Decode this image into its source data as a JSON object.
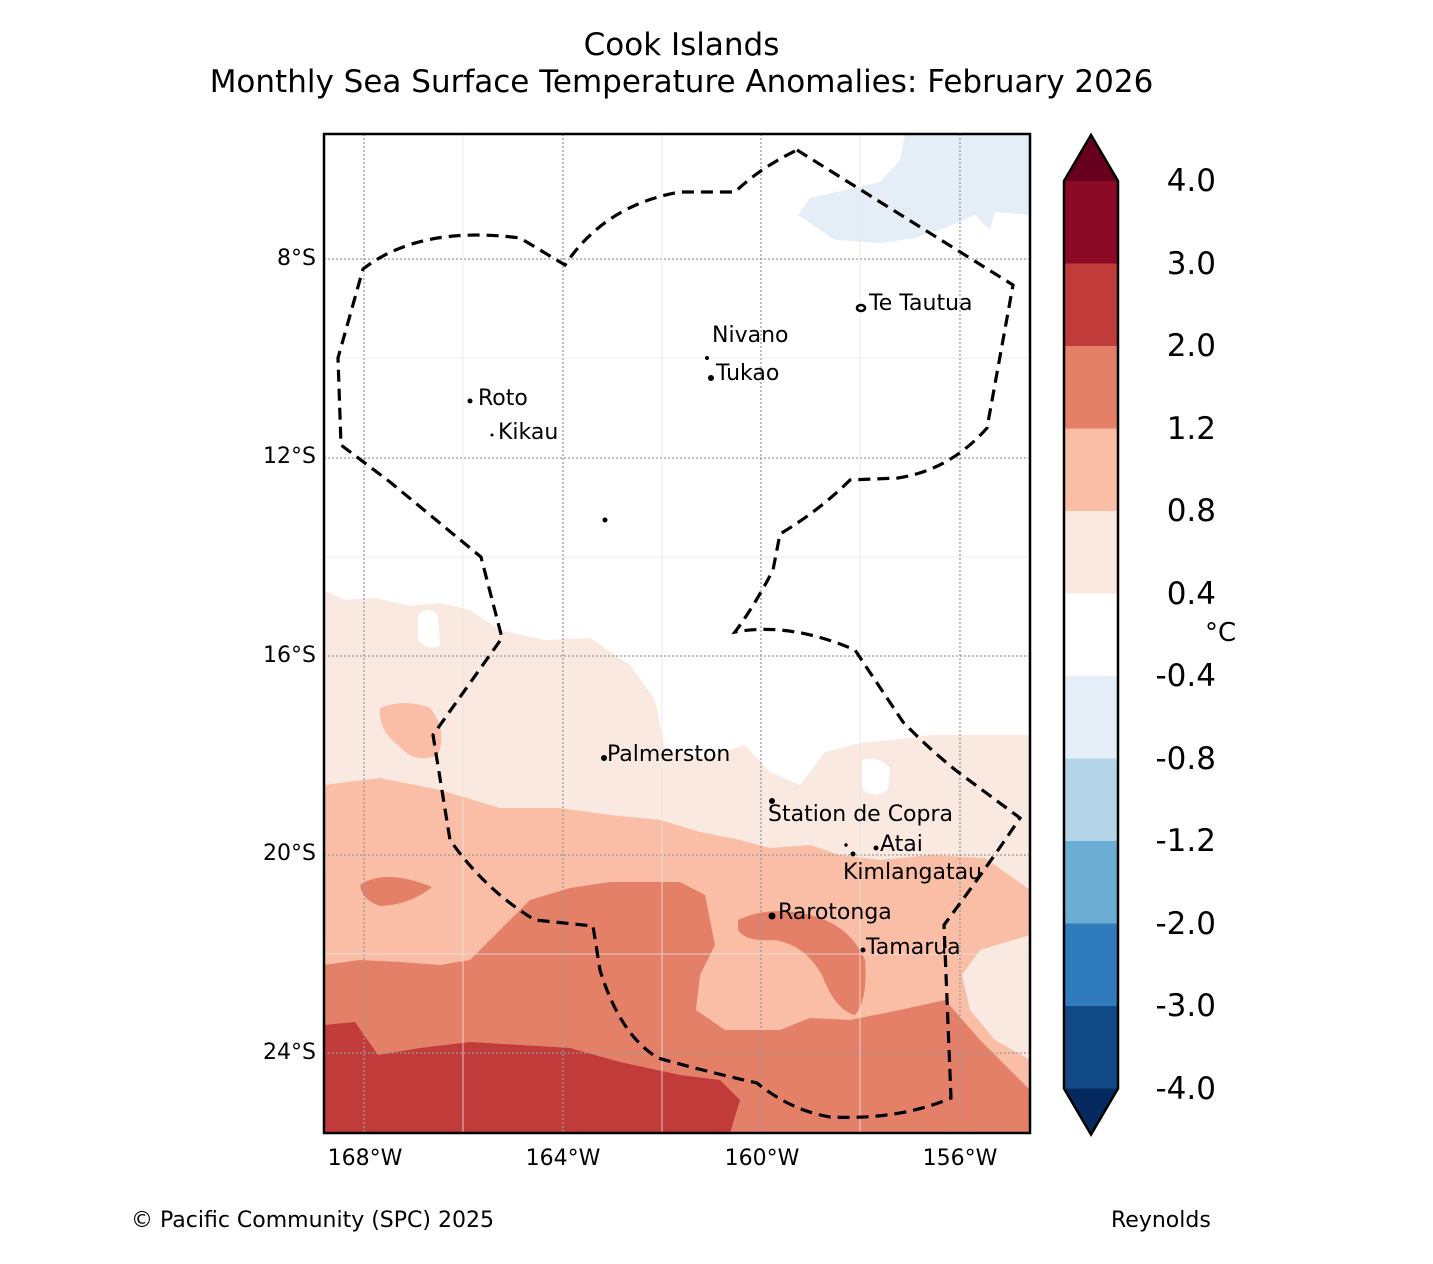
{
  "title": {
    "line1": "Cook Islands",
    "line2": "Monthly Sea Surface Temperature Anomalies: February 2026"
  },
  "axes": {
    "lat_labels": [
      "8°S",
      "12°S",
      "16°S",
      "20°S",
      "24°S"
    ],
    "lon_labels": [
      "168°W",
      "164°W",
      "160°W",
      "156°W"
    ]
  },
  "places": [
    {
      "name": "Te Tautua"
    },
    {
      "name": "Nivano"
    },
    {
      "name": "Tukao"
    },
    {
      "name": "Roto"
    },
    {
      "name": "Kikau"
    },
    {
      "name": "Palmerston"
    },
    {
      "name": "Station de Copra"
    },
    {
      "name": "Atai"
    },
    {
      "name": "Kimlangatau"
    },
    {
      "name": "Rarotonga"
    },
    {
      "name": "Tamarua"
    }
  ],
  "colorbar": {
    "unit": "°C",
    "labels": [
      "4.0",
      "3.0",
      "2.0",
      "1.2",
      "0.8",
      "0.4",
      "-0.4",
      "-0.8",
      "-1.2",
      "-2.0",
      "-3.0",
      "-4.0"
    ],
    "colors": [
      "#67001f",
      "#8b0a26",
      "#c23b3b",
      "#e58068",
      "#f9bea5",
      "#fae9e0",
      "#ffffff",
      "#e5eef6",
      "#b3d5e7",
      "#6caed3",
      "#2f7bbb",
      "#124a87",
      "#062a5f"
    ]
  },
  "footer": {
    "copyright": "© Pacific Community (SPC) 2025",
    "source": "Reynolds"
  }
}
